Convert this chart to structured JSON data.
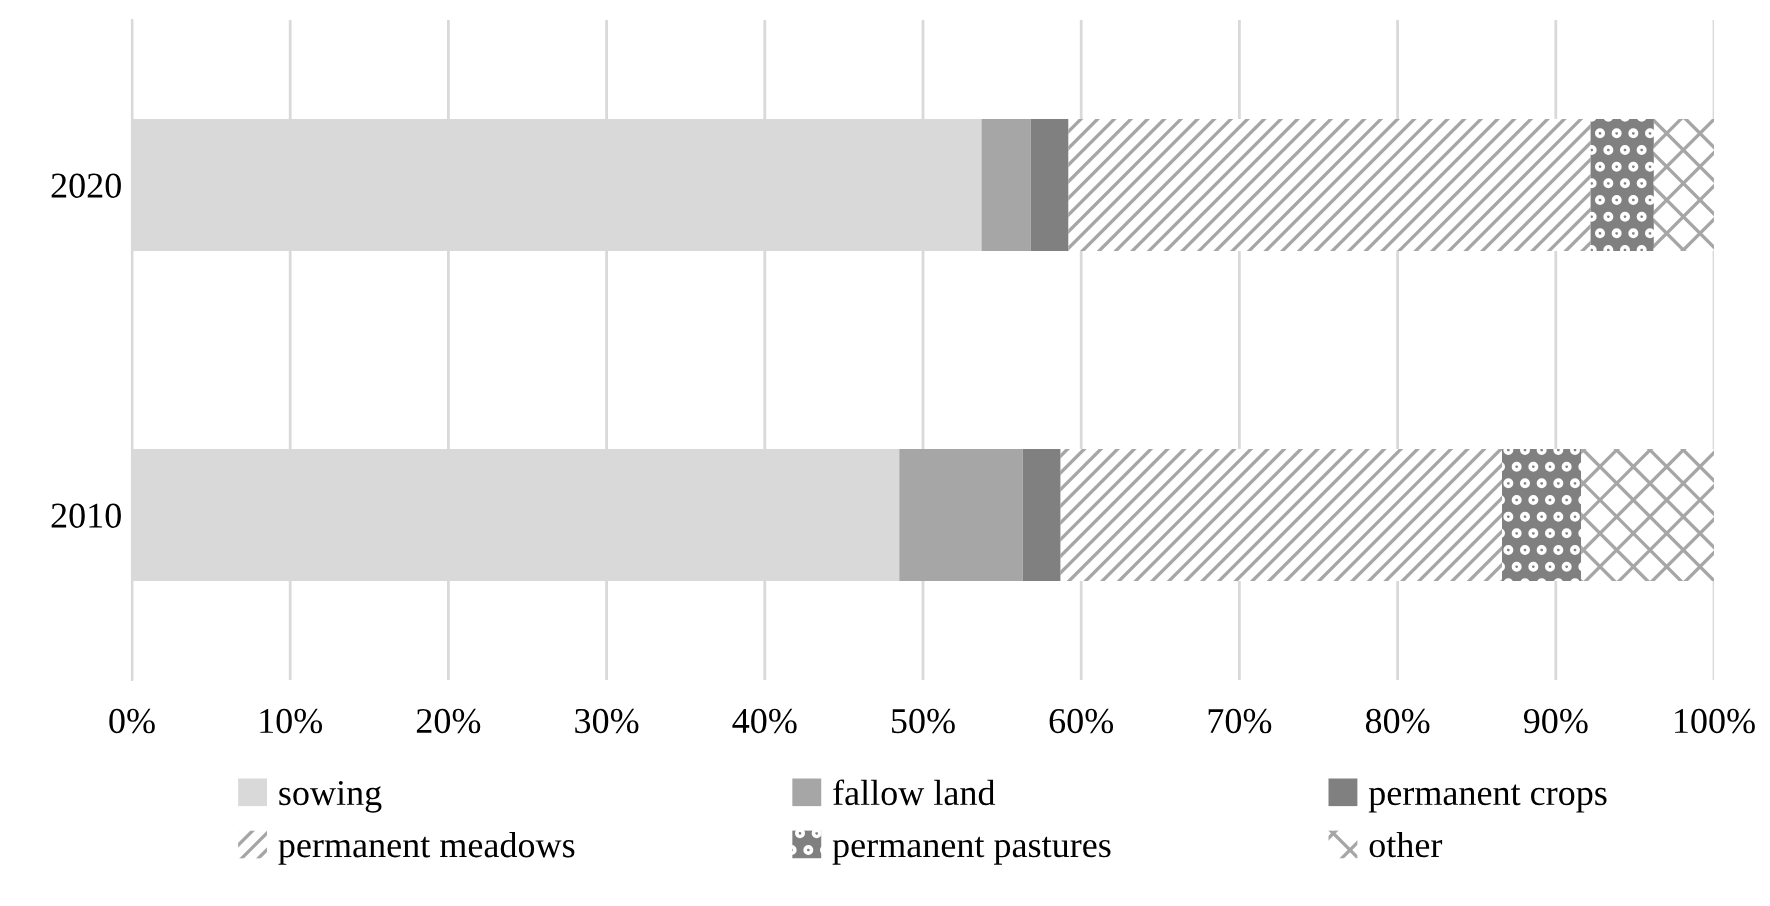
{
  "chart_data": {
    "type": "bar",
    "orientation": "horizontal",
    "stacked": true,
    "categories": [
      "2020",
      "2010"
    ],
    "series": [
      {
        "name": "sowing",
        "color": "#d9d9d9",
        "values": [
          53.7,
          48.5
        ]
      },
      {
        "name": "fallow land",
        "color": "#a6a6a6",
        "values": [
          3.1,
          7.8
        ]
      },
      {
        "name": "permanent crops",
        "color": "#808080",
        "values": [
          2.4,
          2.4
        ]
      },
      {
        "name": "permanent meadows",
        "color": "#a6a6a6",
        "values": [
          33.0,
          27.9
        ]
      },
      {
        "name": "permanent pastures",
        "color": "#808080",
        "values": [
          4.0,
          5.0
        ]
      },
      {
        "name": "other",
        "color": "#a6a6a6",
        "values": [
          3.8,
          8.4
        ]
      }
    ],
    "xlim": [
      0,
      100
    ],
    "xticks": [
      {
        "value": 0,
        "label": "0%"
      },
      {
        "value": 10,
        "label": "10%"
      },
      {
        "value": 20,
        "label": "20%"
      },
      {
        "value": 30,
        "label": "30%"
      },
      {
        "value": 40,
        "label": "40%"
      },
      {
        "value": 50,
        "label": "50%"
      },
      {
        "value": 60,
        "label": "60%"
      },
      {
        "value": 70,
        "label": "70%"
      },
      {
        "value": 80,
        "label": "80%"
      },
      {
        "value": 90,
        "label": "90%"
      },
      {
        "value": 100,
        "label": "100%"
      }
    ],
    "grid": "x",
    "legend": "bottom"
  }
}
